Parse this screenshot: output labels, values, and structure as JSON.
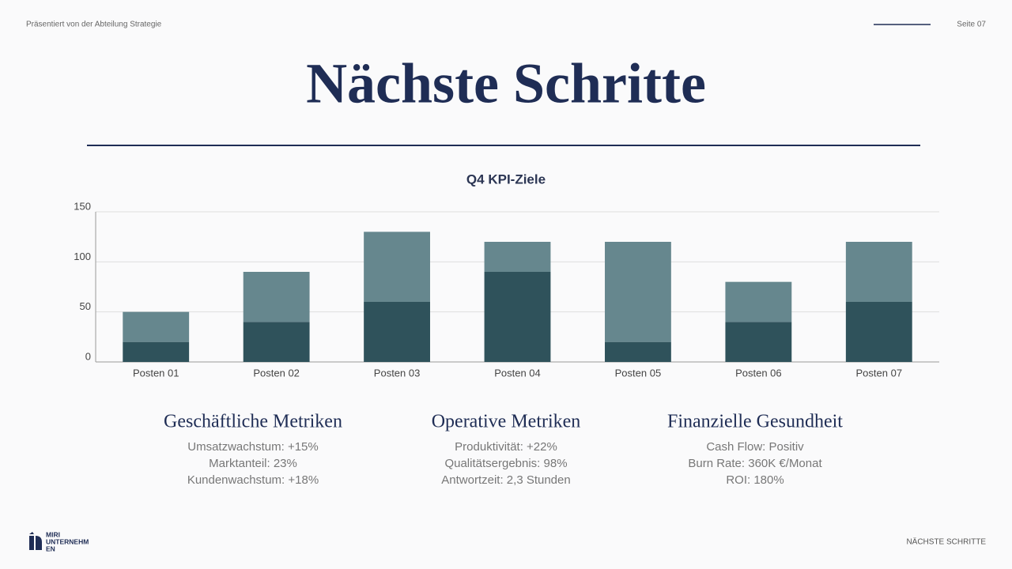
{
  "header": {
    "presenter": "Präsentiert von der Abteilung Strategie",
    "page": "Seite 07"
  },
  "title": "Nächste Schritte",
  "chart_data": {
    "type": "bar",
    "stacked": true,
    "title": "Q4 KPI-Ziele",
    "categories": [
      "Posten 01",
      "Posten 02",
      "Posten 03",
      "Posten 04",
      "Posten 05",
      "Posten 06",
      "Posten 07"
    ],
    "series": [
      {
        "color": "#2f525b",
        "values": [
          20,
          40,
          60,
          90,
          20,
          40,
          60
        ]
      },
      {
        "color": "#66878e",
        "values": [
          30,
          50,
          70,
          30,
          100,
          40,
          60
        ]
      }
    ],
    "ylim": [
      0,
      150
    ],
    "yticks": [
      0,
      50,
      100,
      150
    ],
    "grid": true
  },
  "metrics": [
    {
      "heading": "Geschäftliche Metriken",
      "items": [
        "Umsatzwachstum: +15%",
        "Marktanteil: 23%",
        "Kundenwachstum: +18%"
      ]
    },
    {
      "heading": "Operative Metriken",
      "items": [
        "Produktivität: +22%",
        "Qualitätsergebnis: 98%",
        "Antwortzeit: 2,3 Stunden"
      ]
    },
    {
      "heading": "Finanzielle Gesundheit",
      "items": [
        "Cash Flow: Positiv",
        "Burn Rate: 360K €/Monat",
        "ROI: 180%"
      ]
    }
  ],
  "footer": {
    "logo": [
      "MIRI",
      "UNTERNEHM",
      "EN"
    ],
    "section": "NÄCHSTE SCHRITTE"
  }
}
